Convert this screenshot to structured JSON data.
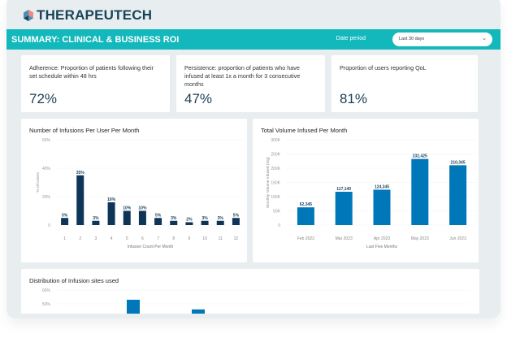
{
  "logo": {
    "text": "THERAPEUTECH"
  },
  "banner": {
    "title": "SUMMARY: CLINICAL & BUSINESS ROI",
    "date_label": "Date period",
    "date_value": "Last 30 days"
  },
  "kpis": [
    {
      "label": "Adherence: Proportion of patients following their set schedule within 48 hrs",
      "value": "72%"
    },
    {
      "label": "Persistence: proportion of patients who have infused at least 1x a month for 3 consecutive months",
      "value": "47%"
    },
    {
      "label": "Proportion of users reporting QoL",
      "value": "81%"
    }
  ],
  "colors": {
    "teal": "#12b8bb",
    "navy": "#0e3558",
    "blue": "#0077b8"
  },
  "chart_data": [
    {
      "type": "bar",
      "title": "Number of Infusions Per User Per Month",
      "xlabel": "Infusion Count Per Month",
      "ylabel": "% Of Users",
      "categories": [
        "1",
        "2",
        "3",
        "4",
        "5",
        "6",
        "7",
        "8",
        "9",
        "10",
        "11",
        "12"
      ],
      "values": [
        5,
        35,
        3,
        16,
        10,
        10,
        5,
        3,
        2,
        3,
        3,
        5
      ],
      "data_labels": [
        "5%",
        "35%",
        "3%",
        "16%",
        "10%",
        "10%",
        "5%",
        "3%",
        "2%",
        "3%",
        "3%",
        "5%"
      ],
      "yticks": [
        "0",
        "20%",
        "40%",
        "60%"
      ],
      "ylim": [
        0,
        60
      ],
      "grid": true
    },
    {
      "type": "bar",
      "title": "Total Volume Infused Per Month",
      "xlabel": "Last Five Months",
      "ylabel": "Monthly Volume Infused (mg)",
      "categories": [
        "Feb 2023",
        "Mar 2023",
        "Apr 2023",
        "May 2023",
        "Jun 2023"
      ],
      "values": [
        62345,
        117140,
        124345,
        232425,
        210345
      ],
      "data_labels": [
        "62,345",
        "117,140",
        "124,345",
        "232,425",
        "210,345"
      ],
      "yticks": [
        "0",
        "50K",
        "100K",
        "150K",
        "200K",
        "250K",
        "300K"
      ],
      "ylim": [
        0,
        300000
      ],
      "grid": true
    },
    {
      "type": "bar",
      "title": "Distribution of Infusion sites used",
      "values": [
        53,
        46
      ],
      "yticks": [
        "50%",
        "60%"
      ],
      "grid": true
    }
  ]
}
